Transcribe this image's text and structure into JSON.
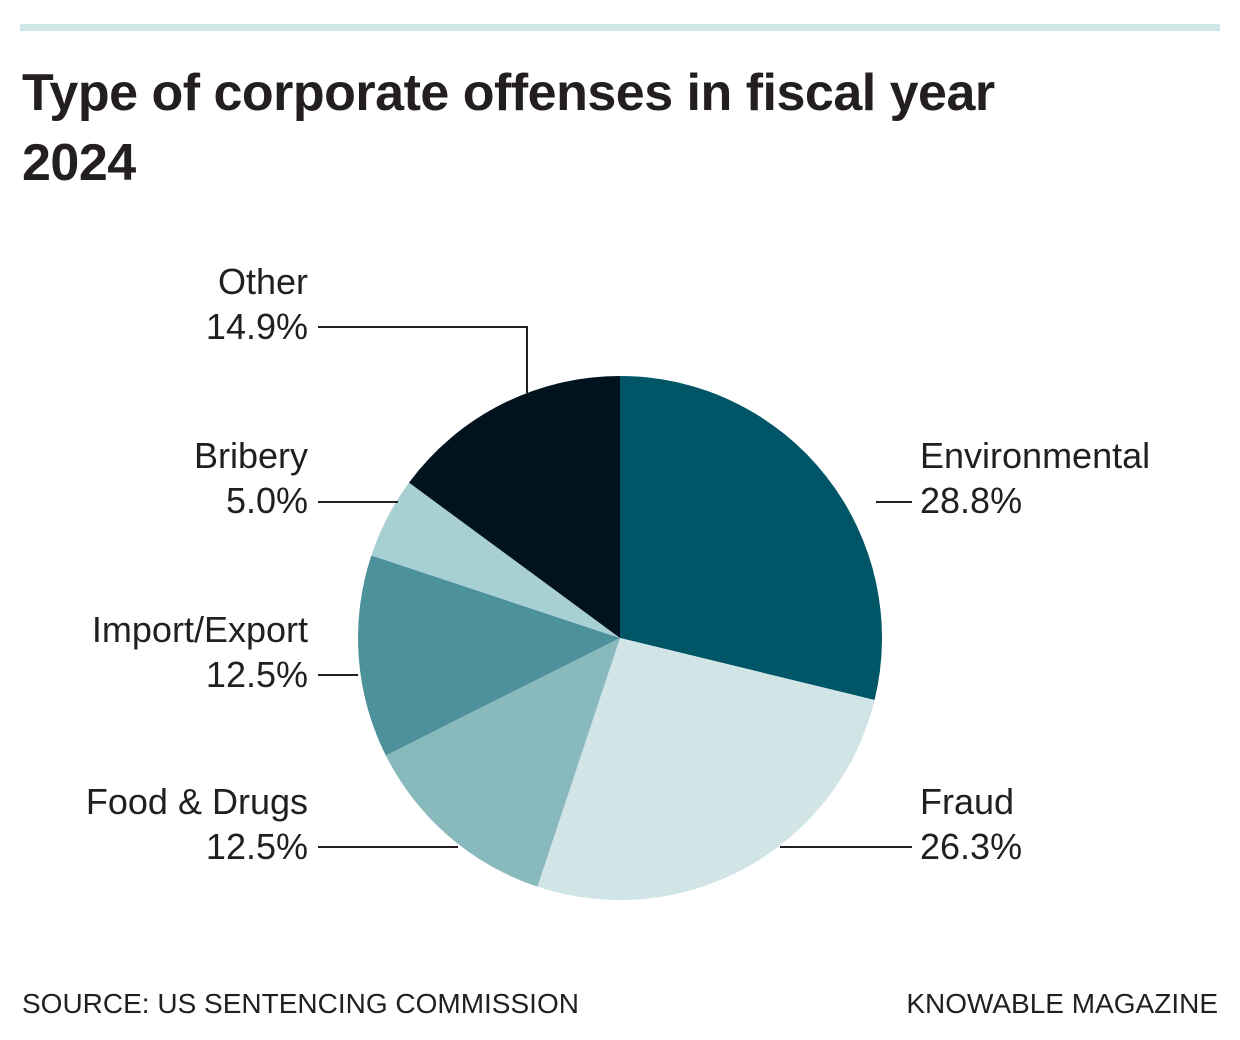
{
  "chart_data": {
    "type": "pie",
    "title": "Type of corporate offenses in fiscal year 2024",
    "categories": [
      "Environmental",
      "Fraud",
      "Food & Drugs",
      "Import/Export",
      "Bribery",
      "Other"
    ],
    "values": [
      28.8,
      26.3,
      12.5,
      12.5,
      5.0,
      14.9
    ],
    "value_labels": [
      "28.8%",
      "26.3%",
      "12.5%",
      "12.5%",
      "5.0%",
      "14.9%"
    ],
    "colors": [
      "#005566",
      "#d1e5e6",
      "#88b9bd",
      "#4d929b",
      "#a8d0d3",
      "#00131f"
    ],
    "source": "SOURCE: US SENTENCING COMMISSION",
    "credit": "KNOWABLE MAGAZINE"
  }
}
